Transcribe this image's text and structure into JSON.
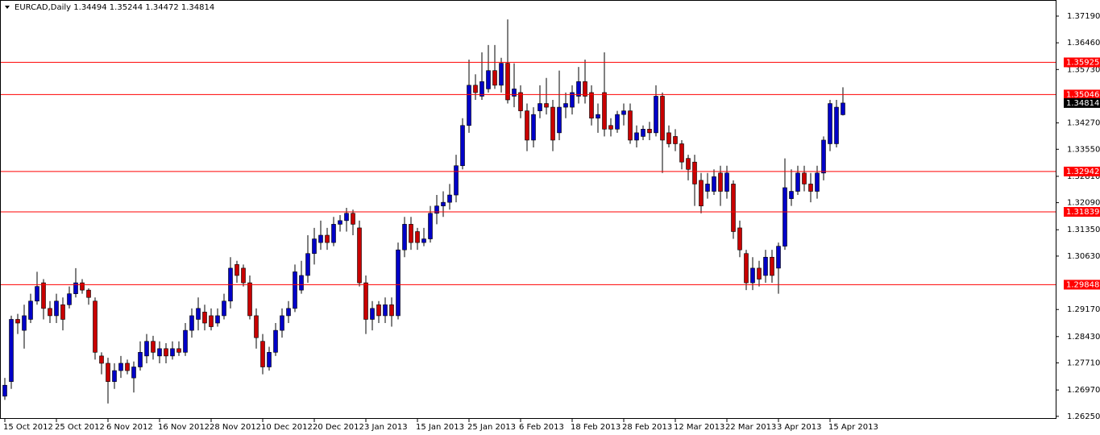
{
  "chart_data": {
    "type": "candlestick",
    "title": "EURCAD,Daily  1.34494 1.35244 1.34472 1.34814",
    "categories": [
      "15 Oct 2012",
      null,
      null,
      null,
      null,
      null,
      null,
      null,
      "25 Oct 2012",
      null,
      null,
      null,
      null,
      null,
      null,
      null,
      "6 Nov 2012",
      null,
      null,
      null,
      null,
      null,
      null,
      null,
      "16 Nov 2012",
      null,
      null,
      null,
      null,
      null,
      null,
      null,
      "28 Nov 2012",
      null,
      null,
      null,
      null,
      null,
      null,
      null,
      "10 Dec 2012",
      null,
      null,
      null,
      null,
      null,
      null,
      null,
      "20 Dec 2012",
      null,
      null,
      null,
      null,
      null,
      null,
      null,
      "3 Jan 2013",
      null,
      null,
      null,
      null,
      null,
      null,
      null,
      "15 Jan 2013",
      null,
      null,
      null,
      null,
      null,
      null,
      null,
      "25 Jan 2013",
      null,
      null,
      null,
      null,
      null,
      null,
      null,
      "6 Feb 2013",
      null,
      null,
      null,
      null,
      null,
      null,
      null,
      "18 Feb 2013",
      null,
      null,
      null,
      null,
      null,
      null,
      null,
      "28 Feb 2013",
      null,
      null,
      null,
      null,
      null,
      null,
      null,
      "12 Mar 2013",
      null,
      null,
      null,
      null,
      null,
      null,
      null,
      "22 Mar 2013",
      null,
      null,
      null,
      null,
      null,
      null,
      null,
      "3 Apr 2013",
      null,
      null,
      null,
      null,
      null,
      null,
      null,
      "15 Apr 2013",
      null,
      null
    ],
    "open": [
      1.268,
      1.272,
      1.289,
      1.286,
      1.289,
      1.294,
      1.299,
      1.292,
      1.29,
      1.293,
      1.293,
      1.296,
      1.299,
      1.297,
      1.294,
      1.279,
      1.277,
      1.272,
      1.275,
      1.277,
      1.273,
      1.276,
      1.279,
      1.283,
      1.279,
      1.281,
      1.279,
      1.281,
      1.28,
      1.286,
      1.289,
      1.291,
      1.29,
      1.288,
      1.29,
      1.294,
      1.304,
      1.303,
      1.299,
      1.29,
      1.283,
      1.276,
      1.28,
      1.286,
      1.29,
      1.292,
      1.297,
      1.301,
      1.307,
      1.31,
      1.312,
      1.31,
      1.315,
      1.316,
      1.318,
      1.314,
      1.299,
      1.289,
      1.293,
      1.29,
      1.293,
      1.29,
      1.308,
      1.315,
      1.313,
      1.31,
      1.311,
      1.318,
      1.32,
      1.321,
      1.323,
      1.331,
      1.342,
      1.353,
      1.35,
      1.352,
      1.357,
      1.353,
      1.359,
      1.35,
      1.351,
      1.346,
      1.338,
      1.346,
      1.348,
      1.347,
      1.34,
      1.347,
      1.347,
      1.35,
      1.354,
      1.351,
      1.344,
      1.351,
      1.342,
      1.341,
      1.345,
      1.346,
      1.338,
      1.339,
      1.341,
      1.34,
      1.35,
      1.34,
      1.339,
      1.337,
      1.333,
      1.332,
      1.327,
      1.324,
      1.324,
      1.329,
      1.324,
      1.326,
      1.314,
      1.307,
      1.299,
      1.303,
      1.301,
      1.306,
      1.303,
      1.309,
      1.322,
      1.324,
      1.329,
      1.326,
      1.324,
      1.329,
      1.337,
      1.337,
      1.34494
    ],
    "high": [
      1.273,
      1.29,
      1.2905,
      1.293,
      1.296,
      1.302,
      1.3,
      1.294,
      1.296,
      1.295,
      1.298,
      1.303,
      1.3,
      1.2975,
      1.295,
      1.28,
      1.2785,
      1.277,
      1.279,
      1.278,
      1.2775,
      1.283,
      1.285,
      1.2845,
      1.283,
      1.2825,
      1.283,
      1.283,
      1.288,
      1.292,
      1.295,
      1.293,
      1.292,
      1.292,
      1.296,
      1.306,
      1.305,
      1.304,
      1.301,
      1.292,
      1.285,
      1.2815,
      1.288,
      1.292,
      1.294,
      1.304,
      1.305,
      1.312,
      1.314,
      1.316,
      1.314,
      1.317,
      1.3175,
      1.3195,
      1.319,
      1.316,
      1.301,
      1.294,
      1.294,
      1.295,
      1.295,
      1.31,
      1.317,
      1.317,
      1.314,
      1.314,
      1.32,
      1.323,
      1.324,
      1.326,
      1.334,
      1.344,
      1.36,
      1.356,
      1.362,
      1.364,
      1.364,
      1.3605,
      1.371,
      1.359,
      1.353,
      1.348,
      1.347,
      1.353,
      1.355,
      1.349,
      1.357,
      1.351,
      1.353,
      1.358,
      1.36,
      1.353,
      1.348,
      1.362,
      1.344,
      1.346,
      1.348,
      1.348,
      1.342,
      1.342,
      1.343,
      1.353,
      1.351,
      1.342,
      1.341,
      1.338,
      1.334,
      1.334,
      1.329,
      1.329,
      1.33,
      1.331,
      1.331,
      1.327,
      1.316,
      1.308,
      1.306,
      1.305,
      1.308,
      1.308,
      1.31,
      1.333,
      1.33,
      1.331,
      1.331,
      1.329,
      1.331,
      1.339,
      1.349,
      1.349,
      1.35244
    ],
    "low": [
      1.267,
      1.27,
      1.285,
      1.281,
      1.288,
      1.293,
      1.289,
      1.288,
      1.288,
      1.286,
      1.292,
      1.295,
      1.296,
      1.293,
      1.278,
      1.274,
      1.266,
      1.27,
      1.273,
      1.274,
      1.269,
      1.275,
      1.277,
      1.278,
      1.277,
      1.277,
      1.278,
      1.279,
      1.279,
      1.284,
      1.286,
      1.286,
      1.286,
      1.287,
      1.289,
      1.292,
      1.299,
      1.298,
      1.289,
      1.281,
      1.274,
      1.275,
      1.279,
      1.284,
      1.288,
      1.291,
      1.296,
      1.299,
      1.304,
      1.308,
      1.308,
      1.309,
      1.313,
      1.313,
      1.312,
      1.298,
      1.285,
      1.286,
      1.288,
      1.288,
      1.287,
      1.289,
      1.306,
      1.308,
      1.308,
      1.309,
      1.31,
      1.315,
      1.317,
      1.319,
      1.321,
      1.33,
      1.34,
      1.349,
      1.349,
      1.351,
      1.352,
      1.351,
      1.348,
      1.347,
      1.344,
      1.335,
      1.336,
      1.344,
      1.345,
      1.335,
      1.338,
      1.344,
      1.345,
      1.348,
      1.348,
      1.342,
      1.34,
      1.339,
      1.339,
      1.34,
      1.342,
      1.337,
      1.336,
      1.338,
      1.338,
      1.339,
      1.329,
      1.336,
      1.335,
      1.33,
      1.327,
      1.32,
      1.318,
      1.322,
      1.323,
      1.32,
      1.322,
      1.311,
      1.306,
      1.297,
      1.297,
      1.298,
      1.299,
      1.299,
      1.296,
      1.308,
      1.32,
      1.323,
      1.324,
      1.321,
      1.322,
      1.327,
      1.335,
      1.336,
      1.34472
    ],
    "close": [
      1.271,
      1.289,
      1.288,
      1.29,
      1.294,
      1.298,
      1.292,
      1.29,
      1.294,
      1.289,
      1.296,
      1.299,
      1.297,
      1.295,
      1.28,
      1.277,
      1.272,
      1.275,
      1.277,
      1.275,
      1.276,
      1.28,
      1.283,
      1.28,
      1.281,
      1.279,
      1.281,
      1.28,
      1.286,
      1.29,
      1.292,
      1.288,
      1.287,
      1.29,
      1.294,
      1.303,
      1.301,
      1.299,
      1.29,
      1.284,
      1.276,
      1.28,
      1.286,
      1.29,
      1.292,
      1.302,
      1.301,
      1.307,
      1.311,
      1.312,
      1.31,
      1.315,
      1.316,
      1.318,
      1.315,
      1.299,
      1.289,
      1.292,
      1.29,
      1.293,
      1.29,
      1.308,
      1.315,
      1.31,
      1.31,
      1.311,
      1.318,
      1.32,
      1.321,
      1.323,
      1.331,
      1.342,
      1.353,
      1.351,
      1.354,
      1.357,
      1.353,
      1.359,
      1.349,
      1.352,
      1.346,
      1.338,
      1.345,
      1.348,
      1.347,
      1.338,
      1.347,
      1.348,
      1.351,
      1.354,
      1.35,
      1.344,
      1.345,
      1.341,
      1.341,
      1.345,
      1.346,
      1.338,
      1.34,
      1.341,
      1.34,
      1.35,
      1.338,
      1.337,
      1.337,
      1.332,
      1.33,
      1.326,
      1.32,
      1.326,
      1.328,
      1.324,
      1.329,
      1.313,
      1.308,
      1.299,
      1.303,
      1.3,
      1.306,
      1.301,
      1.309,
      1.325,
      1.324,
      1.329,
      1.326,
      1.324,
      1.329,
      1.338,
      1.348,
      1.347,
      1.34814
    ],
    "up_color": "#0000c8",
    "down_color": "#c80000",
    "ylim": [
      1.2618,
      1.3763
    ],
    "yticks": [
      {
        "value": 1.3719,
        "label": "1.37190"
      },
      {
        "value": 1.3646,
        "label": "1.36460"
      },
      {
        "value": 1.3573,
        "label": "1.35730"
      },
      {
        "value": 1.3427,
        "label": "1.34270"
      },
      {
        "value": 1.3355,
        "label": "1.33550"
      },
      {
        "value": 1.3281,
        "label": "1.32810"
      },
      {
        "value": 1.3209,
        "label": "1.32090"
      },
      {
        "value": 1.3135,
        "label": "1.31350"
      },
      {
        "value": 1.3063,
        "label": "1.30630"
      },
      {
        "value": 1.2917,
        "label": "1.29170"
      },
      {
        "value": 1.2843,
        "label": "1.28430"
      },
      {
        "value": 1.2771,
        "label": "1.27710"
      },
      {
        "value": 1.2697,
        "label": "1.26970"
      },
      {
        "value": 1.2625,
        "label": "1.26250"
      }
    ],
    "levels": [
      1.35925,
      1.35046,
      1.32942,
      1.31839,
      1.29848
    ],
    "level_color": "#ff0000",
    "last_price": 1.34814,
    "grid": false
  }
}
